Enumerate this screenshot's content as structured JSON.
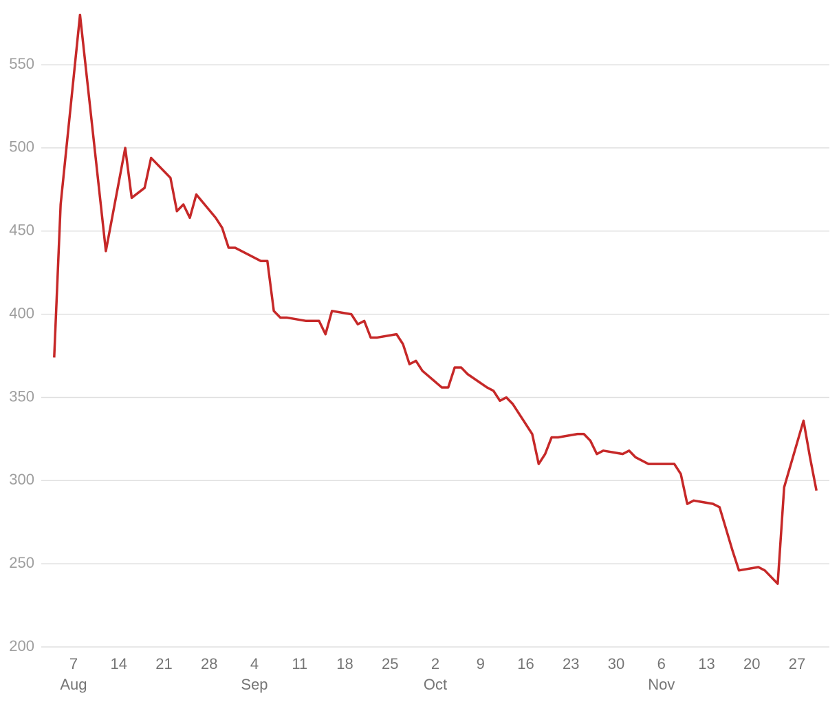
{
  "chart_data": {
    "type": "line",
    "x": [
      "Aug 4",
      "Aug 5",
      "Aug 8",
      "Aug 12",
      "Aug 15",
      "Aug 16",
      "Aug 18",
      "Aug 19",
      "Aug 22",
      "Aug 23",
      "Aug 24",
      "Aug 25",
      "Aug 26",
      "Aug 29",
      "Aug 30",
      "Aug 31",
      "Sep 1",
      "Sep 5",
      "Sep 6",
      "Sep 7",
      "Sep 8",
      "Sep 9",
      "Sep 12",
      "Sep 14",
      "Sep 15",
      "Sep 16",
      "Sep 19",
      "Sep 20",
      "Sep 21",
      "Sep 22",
      "Sep 23",
      "Sep 26",
      "Sep 27",
      "Sep 28",
      "Sep 29",
      "Sep 30",
      "Oct 3",
      "Oct 4",
      "Oct 5",
      "Oct 6",
      "Oct 7",
      "Oct 10",
      "Oct 11",
      "Oct 12",
      "Oct 13",
      "Oct 14",
      "Oct 17",
      "Oct 18",
      "Oct 19",
      "Oct 20",
      "Oct 21",
      "Oct 24",
      "Oct 25",
      "Oct 26",
      "Oct 27",
      "Oct 28",
      "Oct 31",
      "Nov 1",
      "Nov 2",
      "Nov 4",
      "Nov 8",
      "Nov 9",
      "Nov 10",
      "Nov 11",
      "Nov 14",
      "Nov 15",
      "Nov 17",
      "Nov 18",
      "Nov 21",
      "Nov 22",
      "Nov 24",
      "Nov 25",
      "Nov 28",
      "Nov 29",
      "Nov 30"
    ],
    "values": [
      374,
      466,
      580,
      438,
      500,
      470,
      476,
      494,
      482,
      462,
      466,
      458,
      472,
      458,
      452,
      440,
      440,
      432,
      432,
      402,
      398,
      398,
      396,
      396,
      388,
      402,
      400,
      394,
      396,
      386,
      386,
      388,
      382,
      370,
      372,
      366,
      356,
      356,
      368,
      368,
      364,
      356,
      354,
      348,
      350,
      346,
      328,
      310,
      316,
      326,
      326,
      328,
      328,
      324,
      316,
      318,
      316,
      318,
      314,
      310,
      310,
      304,
      286,
      288,
      286,
      284,
      258,
      246,
      248,
      246,
      238,
      296,
      336,
      314,
      294
    ],
    "color": "#c62828",
    "xlim": [
      "Aug 2",
      "Dec 2"
    ],
    "xticks": [
      {
        "value": "Aug 7",
        "label": "7"
      },
      {
        "value": "Aug 14",
        "label": "14"
      },
      {
        "value": "Aug 21",
        "label": "21"
      },
      {
        "value": "Aug 28",
        "label": "28"
      },
      {
        "value": "Sep 4",
        "label": "4"
      },
      {
        "value": "Sep 11",
        "label": "11"
      },
      {
        "value": "Sep 18",
        "label": "18"
      },
      {
        "value": "Sep 25",
        "label": "25"
      },
      {
        "value": "Oct 2",
        "label": "2"
      },
      {
        "value": "Oct 9",
        "label": "9"
      },
      {
        "value": "Oct 16",
        "label": "16"
      },
      {
        "value": "Oct 23",
        "label": "23"
      },
      {
        "value": "Oct 30",
        "label": "30"
      },
      {
        "value": "Nov 6",
        "label": "6"
      },
      {
        "value": "Nov 13",
        "label": "13"
      },
      {
        "value": "Nov 20",
        "label": "20"
      },
      {
        "value": "Nov 27",
        "label": "27"
      }
    ],
    "xtick_groups": [
      {
        "value": "Aug 7",
        "label": "Aug"
      },
      {
        "value": "Sep 4",
        "label": "Sep"
      },
      {
        "value": "Oct 2",
        "label": "Oct"
      },
      {
        "value": "Nov 6",
        "label": "Nov"
      }
    ],
    "ylim": [
      200,
      585
    ],
    "yticks": [
      200,
      250,
      300,
      350,
      400,
      450,
      500,
      550
    ],
    "grid": true
  }
}
